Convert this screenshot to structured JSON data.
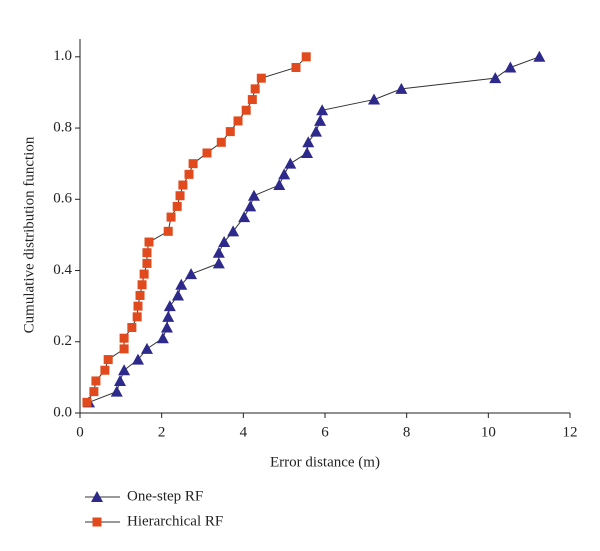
{
  "chart_data": {
    "type": "scatter",
    "x_label": "Error distance (m)",
    "y_label": "Cumulative distribution function",
    "xlim": [
      0,
      12
    ],
    "xticks": [
      0,
      2,
      4,
      6,
      8,
      10,
      12
    ],
    "ylim": [
      0,
      1.05
    ],
    "yticks": [
      {
        "value": 0,
        "label": "0.0"
      },
      0.2,
      0.4,
      0.6,
      0.8,
      {
        "value": 1,
        "label": "1.0"
      }
    ],
    "line_color": "#333333",
    "series": [
      {
        "name": "One-step RF",
        "color": "#2e2a8c",
        "marker": "triangle",
        "x": [
          0.22,
          0.9,
          0.98,
          1.08,
          1.42,
          1.64,
          2.03,
          2.13,
          2.16,
          2.2,
          2.4,
          2.48,
          2.72,
          3.4,
          3.4,
          3.53,
          3.75,
          4.02,
          4.17,
          4.26,
          4.88,
          5.0,
          5.15,
          5.56,
          5.59,
          5.78,
          5.88,
          5.93,
          7.2,
          7.87,
          10.17,
          10.54,
          11.25
        ],
        "values": [
          0.03,
          0.06,
          0.09,
          0.12,
          0.15,
          0.18,
          0.21,
          0.24,
          0.27,
          0.3,
          0.33,
          0.36,
          0.39,
          0.42,
          0.45,
          0.48,
          0.51,
          0.55,
          0.58,
          0.61,
          0.64,
          0.67,
          0.7,
          0.73,
          0.76,
          0.79,
          0.82,
          0.85,
          0.88,
          0.91,
          0.94,
          0.97,
          1.0
        ]
      },
      {
        "name": "Hierarchical RF",
        "color": "#e04a1c",
        "marker": "square",
        "x": [
          0.17,
          0.34,
          0.39,
          0.61,
          0.69,
          1.08,
          1.08,
          1.27,
          1.4,
          1.42,
          1.47,
          1.52,
          1.57,
          1.64,
          1.64,
          1.69,
          2.16,
          2.23,
          2.38,
          2.45,
          2.52,
          2.67,
          2.77,
          3.11,
          3.46,
          3.68,
          3.87,
          4.07,
          4.22,
          4.29,
          4.44,
          5.29,
          5.54
        ],
        "values": [
          0.03,
          0.06,
          0.09,
          0.12,
          0.15,
          0.18,
          0.21,
          0.24,
          0.27,
          0.3,
          0.33,
          0.36,
          0.39,
          0.42,
          0.45,
          0.48,
          0.51,
          0.55,
          0.58,
          0.61,
          0.64,
          0.67,
          0.7,
          0.73,
          0.76,
          0.79,
          0.82,
          0.85,
          0.88,
          0.91,
          0.94,
          0.97,
          1.0
        ]
      }
    ]
  }
}
